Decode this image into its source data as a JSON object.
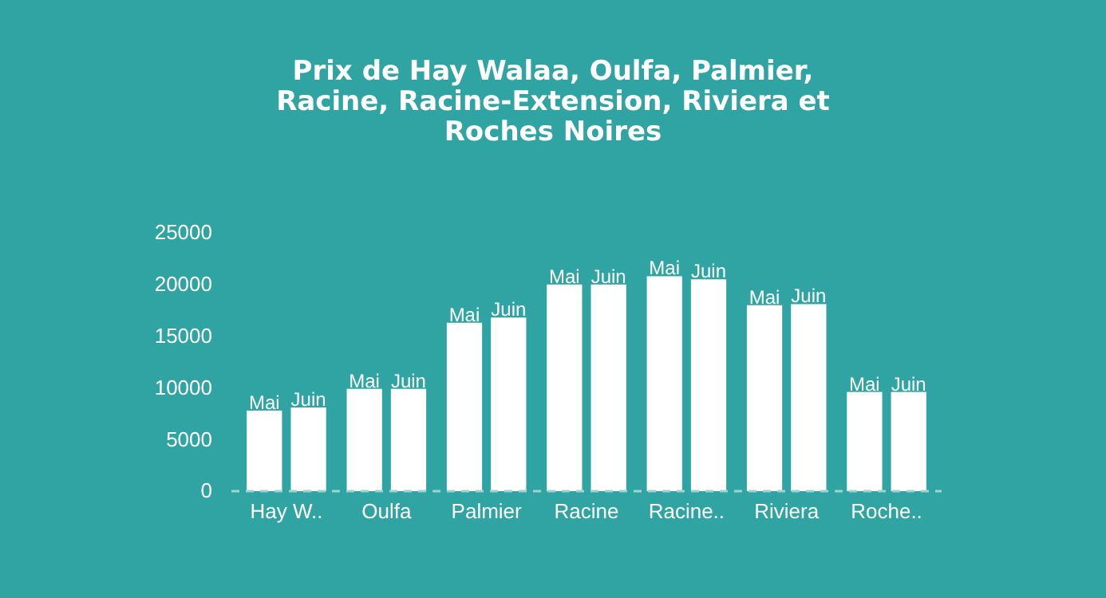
{
  "chart_data": {
    "type": "bar",
    "title": "Prix de Hay Walaa, Oulfa, Palmier, Racine, Racine-Extension, Riviera et Roches Noires",
    "categories": [
      "Hay W..",
      "Oulfa",
      "Palmier",
      "Racine",
      "Racine..",
      "Riviera",
      "Roche.."
    ],
    "series": [
      {
        "name": "Mai",
        "color": "#ffffff",
        "values": [
          7800,
          9900,
          16300,
          20000,
          20800,
          18000,
          9600
        ]
      },
      {
        "name": "Juin",
        "color": "#ffffff",
        "values": [
          8100,
          9900,
          16800,
          20000,
          20500,
          18100,
          9600
        ]
      }
    ],
    "ylim": [
      0,
      25000
    ],
    "yticks": [
      0,
      5000,
      10000,
      15000,
      20000,
      25000
    ],
    "grid": false,
    "legend": false
  }
}
